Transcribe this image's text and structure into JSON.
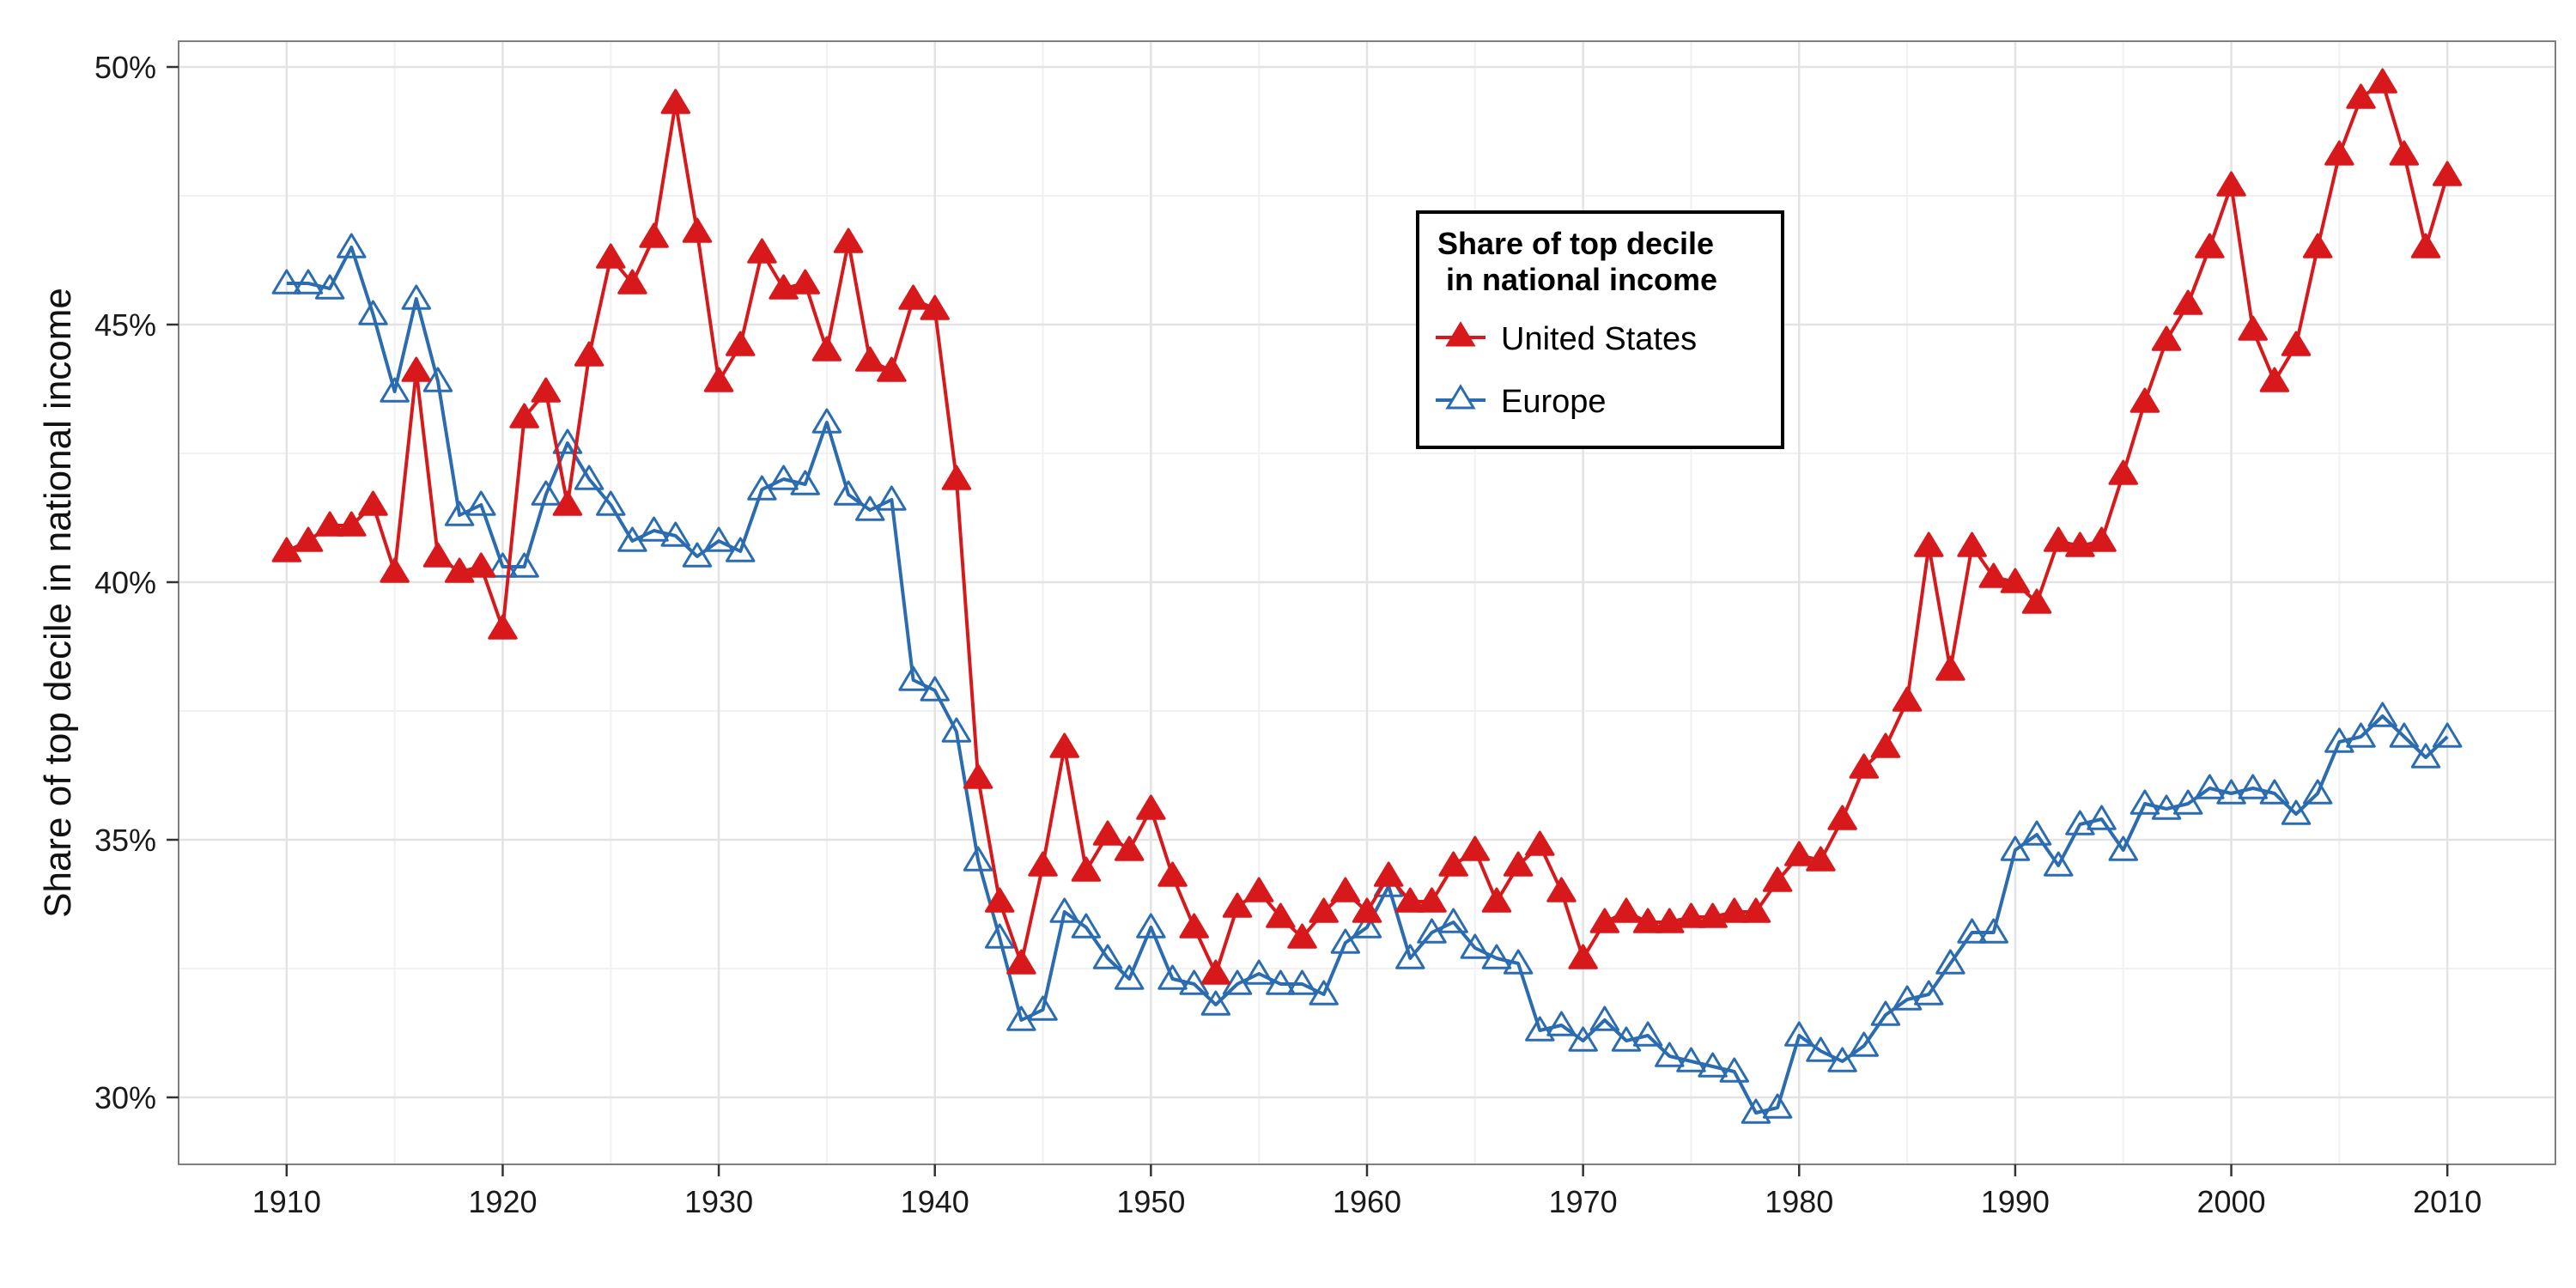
{
  "chart_data": {
    "type": "line",
    "title": "",
    "xlabel": "",
    "ylabel": "Share of top decile in national income",
    "xlim": [
      1905,
      2015
    ],
    "ylim": [
      0.287,
      0.505
    ],
    "x_ticks": [
      1910,
      1920,
      1930,
      1940,
      1950,
      1960,
      1970,
      1980,
      1990,
      2000,
      2010
    ],
    "x_tick_labels": [
      "1910",
      "1920",
      "1930",
      "1940",
      "1950",
      "1960",
      "1970",
      "1980",
      "1990",
      "2000",
      "2010"
    ],
    "y_ticks": [
      0.3,
      0.35,
      0.4,
      0.45,
      0.5
    ],
    "y_tick_labels": [
      "30%",
      "35%",
      "40%",
      "45%",
      "50%"
    ],
    "grid": true,
    "legend": {
      "title": "Share of top decile\n in national income",
      "title_lines": [
        "Share of top decile",
        "in national income"
      ],
      "position": "top-center"
    },
    "x": [
      1910,
      1911,
      1912,
      1913,
      1914,
      1915,
      1916,
      1917,
      1918,
      1919,
      1920,
      1921,
      1922,
      1923,
      1924,
      1925,
      1926,
      1927,
      1928,
      1929,
      1930,
      1931,
      1932,
      1933,
      1934,
      1935,
      1936,
      1937,
      1938,
      1939,
      1940,
      1941,
      1942,
      1943,
      1944,
      1945,
      1946,
      1947,
      1948,
      1949,
      1950,
      1951,
      1952,
      1953,
      1954,
      1955,
      1956,
      1957,
      1958,
      1959,
      1960,
      1961,
      1962,
      1963,
      1964,
      1965,
      1966,
      1967,
      1968,
      1969,
      1970,
      1971,
      1972,
      1973,
      1974,
      1975,
      1976,
      1977,
      1978,
      1979,
      1980,
      1981,
      1982,
      1983,
      1984,
      1985,
      1986,
      1987,
      1988,
      1989,
      1990,
      1991,
      1992,
      1993,
      1994,
      1995,
      1996,
      1997,
      1998,
      1999,
      2000,
      2001,
      2002,
      2003,
      2004,
      2005,
      2006,
      2007,
      2008,
      2009,
      2010
    ],
    "series": [
      {
        "name": "United States",
        "color": "#d7191c",
        "marker": "filled-triangle",
        "values": [
          0.406,
          0.408,
          0.411,
          0.411,
          0.415,
          0.402,
          0.441,
          0.405,
          0.402,
          0.403,
          0.391,
          0.432,
          0.437,
          0.415,
          0.444,
          0.463,
          0.458,
          0.467,
          0.493,
          0.468,
          0.439,
          0.446,
          0.464,
          0.457,
          0.458,
          0.445,
          0.466,
          0.443,
          0.441,
          0.455,
          0.453,
          0.42,
          0.362,
          0.338,
          0.326,
          0.345,
          0.368,
          0.344,
          0.351,
          0.348,
          0.356,
          0.343,
          0.333,
          0.324,
          0.337,
          0.34,
          0.335,
          0.331,
          0.336,
          0.34,
          0.336,
          0.343,
          0.338,
          0.338,
          0.345,
          0.348,
          0.338,
          0.345,
          0.349,
          0.34,
          0.327,
          0.334,
          0.336,
          0.334,
          0.334,
          0.335,
          0.335,
          0.336,
          0.336,
          0.342,
          0.347,
          0.346,
          0.354,
          0.364,
          0.368,
          0.377,
          0.407,
          0.383,
          0.407,
          0.401,
          0.4,
          0.396,
          0.408,
          0.407,
          0.408,
          0.421,
          0.435,
          0.447,
          0.454,
          0.465,
          0.477,
          0.449,
          0.439,
          0.446,
          0.465,
          0.483,
          0.494,
          0.497,
          0.483,
          0.465,
          0.479
        ]
      },
      {
        "name": "Europe",
        "color": "#2b6cb0",
        "marker": "hollow-triangle",
        "values": [
          0.458,
          0.458,
          0.457,
          0.465,
          0.452,
          0.437,
          0.455,
          0.439,
          0.413,
          0.415,
          0.403,
          0.403,
          0.417,
          0.427,
          0.42,
          0.415,
          0.408,
          0.41,
          0.409,
          0.405,
          0.408,
          0.406,
          0.418,
          0.42,
          0.419,
          0.431,
          0.417,
          0.414,
          0.416,
          0.381,
          0.379,
          0.371,
          0.346,
          0.331,
          0.315,
          0.317,
          0.336,
          0.333,
          0.327,
          0.323,
          0.333,
          0.323,
          0.322,
          0.318,
          0.322,
          0.324,
          0.322,
          0.322,
          0.32,
          0.33,
          0.333,
          0.341,
          0.327,
          0.332,
          0.334,
          0.329,
          0.327,
          0.326,
          0.313,
          0.314,
          0.311,
          0.315,
          0.311,
          0.312,
          0.308,
          0.307,
          0.306,
          0.305,
          0.297,
          0.298,
          0.312,
          0.309,
          0.307,
          0.31,
          0.316,
          0.319,
          0.32,
          0.326,
          0.332,
          0.332,
          0.348,
          0.351,
          0.345,
          0.353,
          0.354,
          0.348,
          0.357,
          0.356,
          0.357,
          0.36,
          0.359,
          0.36,
          0.359,
          0.355,
          0.359,
          0.369,
          0.37,
          0.374,
          0.37,
          0.366,
          0.37
        ]
      }
    ]
  }
}
